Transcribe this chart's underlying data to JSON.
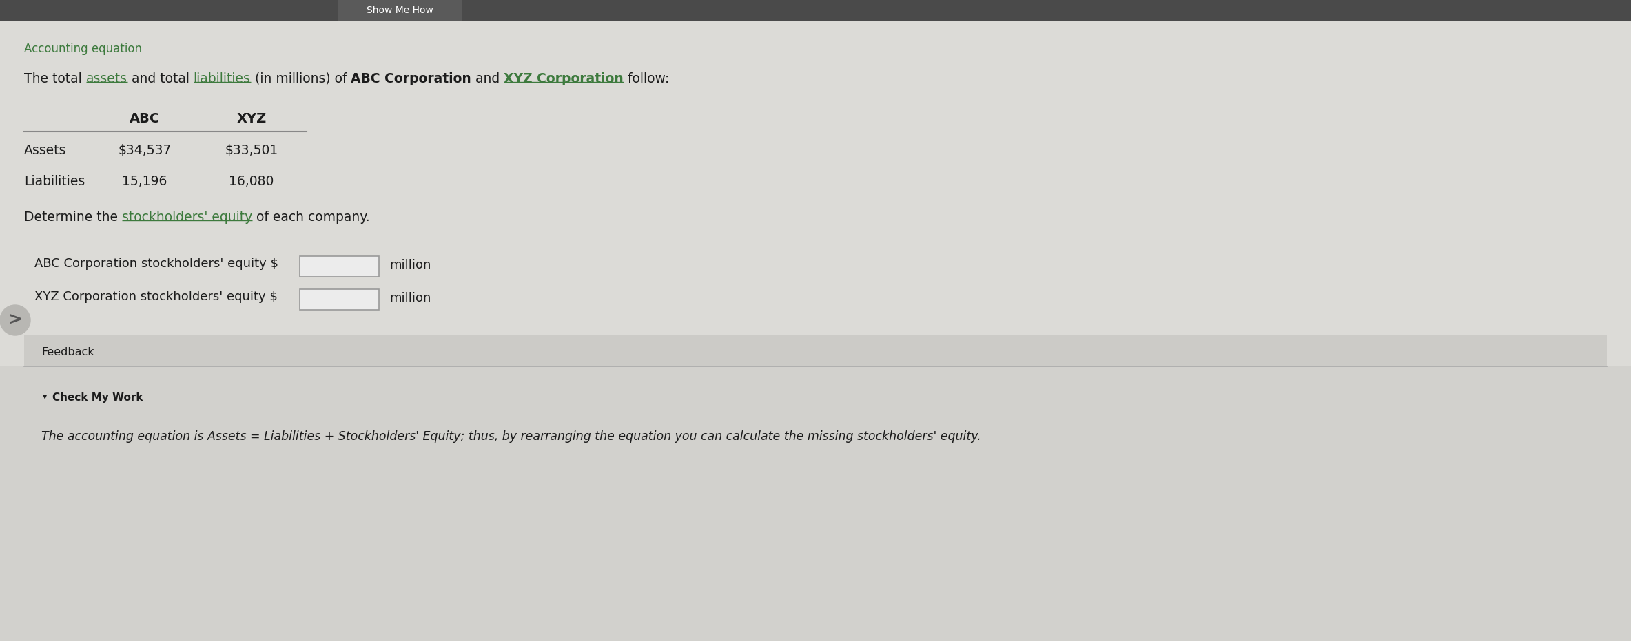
{
  "title": "Accounting equation",
  "intro_parts": [
    {
      "text": "The total ",
      "bold": false,
      "green": false,
      "underline": false
    },
    {
      "text": "assets",
      "bold": false,
      "green": true,
      "underline": true
    },
    {
      "text": " and total ",
      "bold": false,
      "green": false,
      "underline": false
    },
    {
      "text": "liabilities",
      "bold": false,
      "green": true,
      "underline": true
    },
    {
      "text": " (in millions) of ",
      "bold": false,
      "green": false,
      "underline": false
    },
    {
      "text": "ABC Corporation",
      "bold": true,
      "green": false,
      "underline": false
    },
    {
      "text": " and ",
      "bold": false,
      "green": false,
      "underline": false
    },
    {
      "text": "XYZ Corporation",
      "bold": true,
      "green": true,
      "underline": true
    },
    {
      "text": " follow:",
      "bold": false,
      "green": false,
      "underline": false
    }
  ],
  "determine_parts": [
    {
      "text": "Determine the ",
      "bold": false,
      "green": false,
      "underline": false
    },
    {
      "text": "stockholders' equity",
      "bold": false,
      "green": true,
      "underline": true
    },
    {
      "text": " of each company.",
      "bold": false,
      "green": false,
      "underline": false
    }
  ],
  "abc_assets": "$34,537",
  "xyz_assets": "$33,501",
  "abc_liabilities": "15,196",
  "xyz_liabilities": "16,080",
  "label_abc": "ABC Corporation stockholders' equity $",
  "label_xyz": "XYZ Corporation stockholders' equity $",
  "suffix": "million",
  "feedback_label": "Feedback",
  "check_label": "Check My Work",
  "feedback_text": "The accounting equation is Assets = Liabilities + Stockholders' Equity; thus, by rearranging the equation you can calculate the missing stockholders' equity.",
  "bg_main": "#dcdbd7",
  "bg_feedback": "#cccbc7",
  "bg_bottom": "#d2d1cd",
  "bg_white_area": "#e8e7e3",
  "text_dark": "#1c1c1c",
  "text_green": "#3d7a3d",
  "header_bg": "#4a4a4a",
  "input_bg": "#ececec",
  "input_border": "#999999",
  "line_color": "#888888",
  "circle_color": "#b8b7b3",
  "circle_text": "#555555"
}
